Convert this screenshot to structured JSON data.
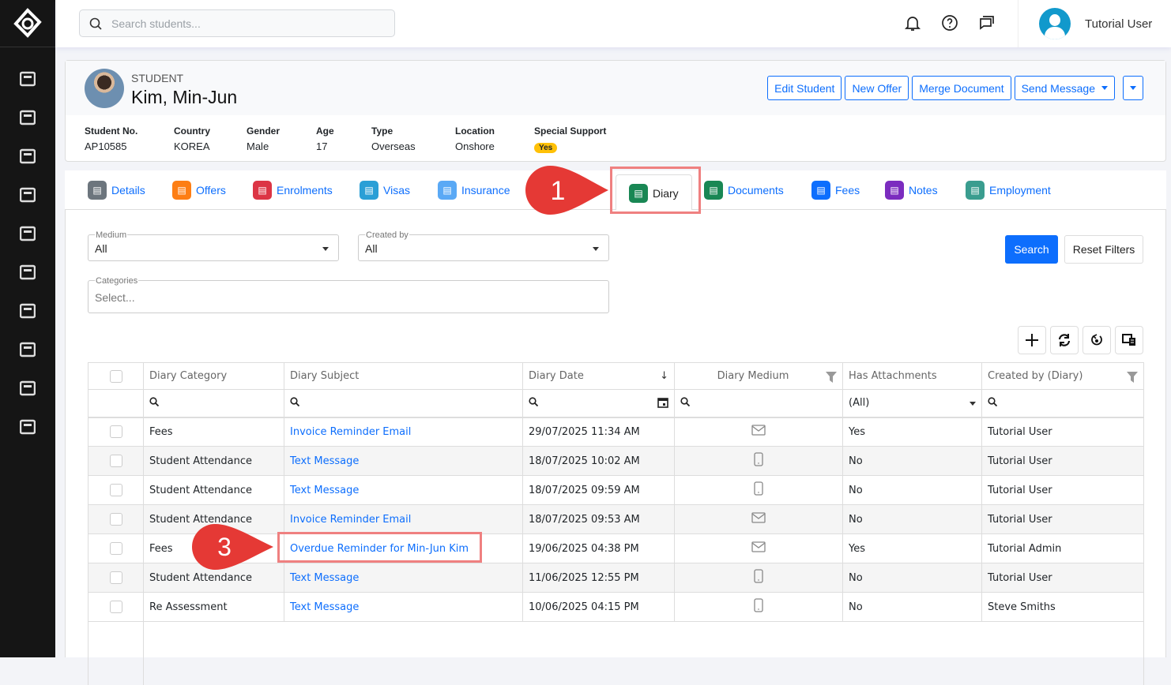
{
  "topbar": {
    "search_placeholder": "Search students...",
    "user_name": "Tutorial User"
  },
  "sidebar": {
    "icons": [
      "dashboard-icon",
      "contacts-icon",
      "copy-icon",
      "layout-icon",
      "invoice-icon",
      "book-icon",
      "briefcase-icon",
      "network-icon",
      "building-icon",
      "sliders-icon"
    ]
  },
  "student": {
    "label": "STUDENT",
    "name": "Kim, Min-Jun",
    "facts": [
      {
        "k": "Student No.",
        "v": "AP10585"
      },
      {
        "k": "Country",
        "v": "KOREA"
      },
      {
        "k": "Gender",
        "v": "Male"
      },
      {
        "k": "Age",
        "v": "17"
      },
      {
        "k": "Type",
        "v": "Overseas"
      },
      {
        "k": "Location",
        "v": "Onshore"
      },
      {
        "k": "Special Support",
        "v": "Yes"
      }
    ],
    "buttons": {
      "edit": "Edit Student",
      "offer": "New Offer",
      "merge": "Merge Document",
      "send": "Send Message"
    }
  },
  "tabs": [
    {
      "label": "Details",
      "color": "#6c757d"
    },
    {
      "label": "Offers",
      "color": "#fd7e14"
    },
    {
      "label": "Enrolments",
      "color": "#dc3545"
    },
    {
      "label": "Visas",
      "color": "#2a9fd6"
    },
    {
      "label": "Insurance",
      "color": "#5aa9f5"
    },
    {
      "label": "Diary",
      "color": "#198754"
    },
    {
      "label": "Documents",
      "color": "#198754"
    },
    {
      "label": "Fees",
      "color": "#0d6efd"
    },
    {
      "label": "Notes",
      "color": "#7b2cbf"
    },
    {
      "label": "Employment",
      "color": "#3a9d8f"
    }
  ],
  "filters": {
    "medium_label": "Medium",
    "medium_value": "All",
    "created_label": "Created by",
    "created_value": "All",
    "categories_label": "Categories",
    "categories_placeholder": "Select...",
    "search": "Search",
    "reset": "Reset Filters"
  },
  "table": {
    "headers": [
      "Diary Category",
      "Diary Subject",
      "Diary Date",
      "Diary Medium",
      "Has Attachments",
      "Created by (Diary)"
    ],
    "attachments_filter": "(All)",
    "rows": [
      {
        "category": "Fees",
        "subject": "Invoice Reminder Email",
        "date": "29/07/2025 11:34 AM",
        "medium": "email",
        "attach": "Yes",
        "by": "Tutorial User"
      },
      {
        "category": "Student Attendance",
        "subject": "Text Message",
        "date": "18/07/2025 10:02 AM",
        "medium": "sms",
        "attach": "No",
        "by": "Tutorial User"
      },
      {
        "category": "Student Attendance",
        "subject": "Text Message",
        "date": "18/07/2025 09:59 AM",
        "medium": "sms",
        "attach": "No",
        "by": "Tutorial User"
      },
      {
        "category": "Student Attendance",
        "subject": "Invoice Reminder Email",
        "date": "18/07/2025 09:53 AM",
        "medium": "email",
        "attach": "No",
        "by": "Tutorial User"
      },
      {
        "category": "Fees",
        "subject": "Overdue Reminder for Min-Jun Kim",
        "date": "19/06/2025 04:38 PM",
        "medium": "email",
        "attach": "Yes",
        "by": "Tutorial Admin"
      },
      {
        "category": "Student Attendance",
        "subject": "Text Message",
        "date": "11/06/2025 12:55 PM",
        "medium": "sms",
        "attach": "No",
        "by": "Tutorial User"
      },
      {
        "category": "Re Assessment",
        "subject": "Text Message",
        "date": "10/06/2025 04:15 PM",
        "medium": "sms",
        "attach": "No",
        "by": "Steve Smiths"
      }
    ]
  },
  "callouts": [
    "1",
    "3"
  ],
  "colors": {
    "callout": "#e53935",
    "primary": "#0d6efd"
  }
}
